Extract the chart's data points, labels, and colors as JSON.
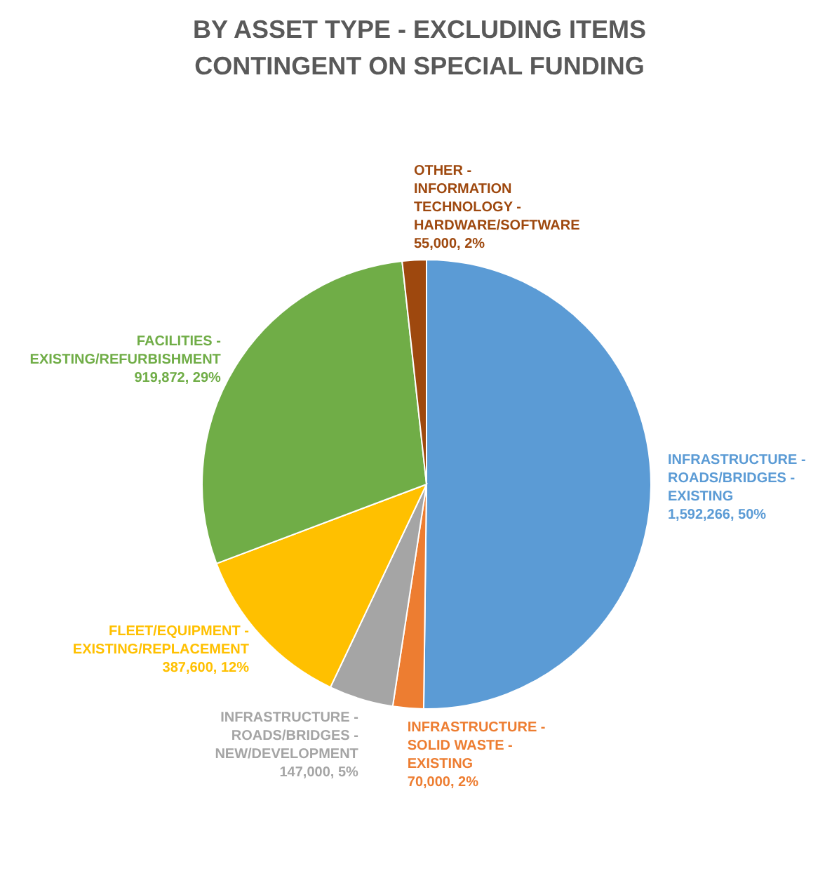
{
  "chart_data": {
    "type": "pie",
    "title": "BY ASSET TYPE - EXCLUDING ITEMS CONTINGENT ON SPECIAL FUNDING",
    "categories": [
      "INFRASTRUCTURE - ROADS/BRIDGES - EXISTING",
      "INFRASTRUCTURE - SOLID WASTE - EXISTING",
      "INFRASTRUCTURE - ROADS/BRIDGES - NEW/DEVELOPMENT",
      "FLEET/EQUIPMENT - EXISTING/REPLACEMENT",
      "FACILITIES - EXISTING/REFURBISHMENT",
      "OTHER - INFORMATION TECHNOLOGY - HARDWARE/SOFTWARE"
    ],
    "values": [
      1592266,
      70000,
      147000,
      387600,
      919872,
      55000
    ],
    "value_labels": [
      "1,592,266, 50%",
      "70,000, 2%",
      "147,000, 5%",
      "387,600, 12%",
      "919,872, 29%",
      "55,000, 2%"
    ],
    "colors": [
      "#5b9bd5",
      "#ed7d31",
      "#a5a5a5",
      "#ffc000",
      "#70ad47",
      "#9e480e"
    ],
    "legend": false
  }
}
